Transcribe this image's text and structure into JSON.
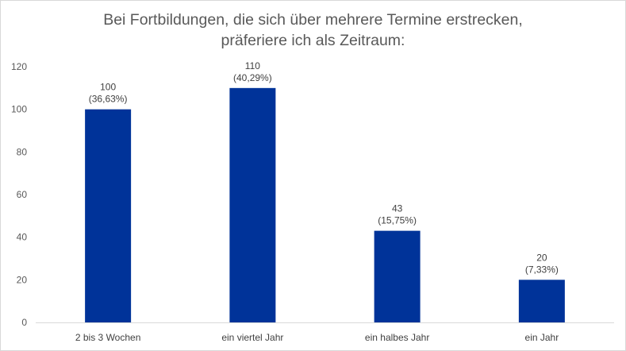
{
  "chart_data": {
    "type": "bar",
    "title_lines": [
      "Bei Fortbildungen, die sich über mehrere Termine erstrecken,",
      "präferiere ich als Zeitraum:"
    ],
    "categories": [
      "2 bis 3 Wochen",
      "ein viertel Jahr",
      "ein halbes Jahr",
      "ein Jahr"
    ],
    "values": [
      100,
      110,
      43,
      20
    ],
    "value_labels": [
      "100",
      "110",
      "43",
      "20"
    ],
    "percent_labels": [
      "(36,63%)",
      "(40,29%)",
      "(15,75%)",
      "(7,33%)"
    ],
    "ylim": [
      0,
      120
    ],
    "yticks": [
      0,
      20,
      40,
      60,
      80,
      100,
      120
    ],
    "bar_color": "#003399",
    "grid": false,
    "legend": "none"
  }
}
